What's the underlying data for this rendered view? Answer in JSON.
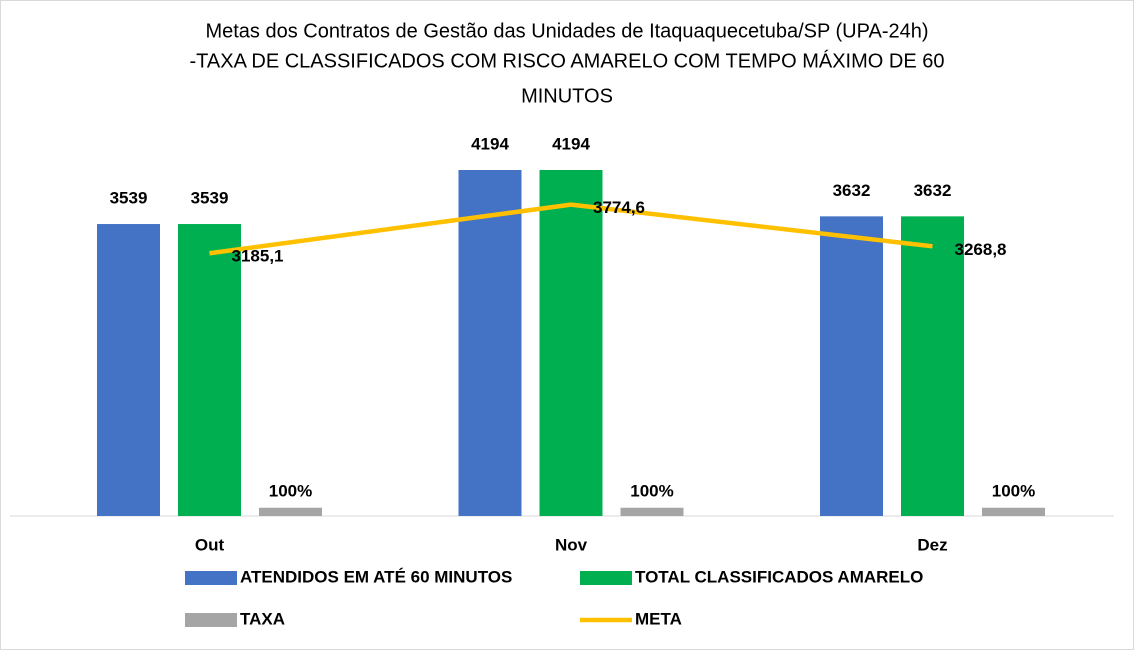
{
  "chart_data": {
    "type": "bar",
    "title": [
      "Metas dos Contratos de Gestão das Unidades de Itaquaquecetuba/SP (UPA-24h)",
      "-TAXA DE CLASSIFICADOS COM RISCO AMARELO COM TEMPO MÁXIMO DE 60",
      "MINUTOS"
    ],
    "categories": [
      "Out",
      "Nov",
      "Dez"
    ],
    "ylim": [
      0,
      4800
    ],
    "series": [
      {
        "name": "ATENDIDOS EM ATÉ 60 MINUTOS",
        "color": "#4472c4",
        "values": [
          3539,
          4194,
          3632
        ]
      },
      {
        "name": "TOTAL CLASSIFICADOS AMARELO",
        "color": "#00b050",
        "values": [
          3539,
          4194,
          3632
        ]
      },
      {
        "name": "TAXA",
        "color": "#a5a5a5",
        "values": [
          100,
          100,
          100
        ],
        "value_labels": [
          "100%",
          "100%",
          "100%"
        ]
      },
      {
        "name": "META",
        "type": "line",
        "color": "#ffc000",
        "values": [
          3185.1,
          3774.6,
          3268.8
        ],
        "value_labels": [
          "3185,1",
          "3774,6",
          "3268,8"
        ]
      }
    ]
  }
}
